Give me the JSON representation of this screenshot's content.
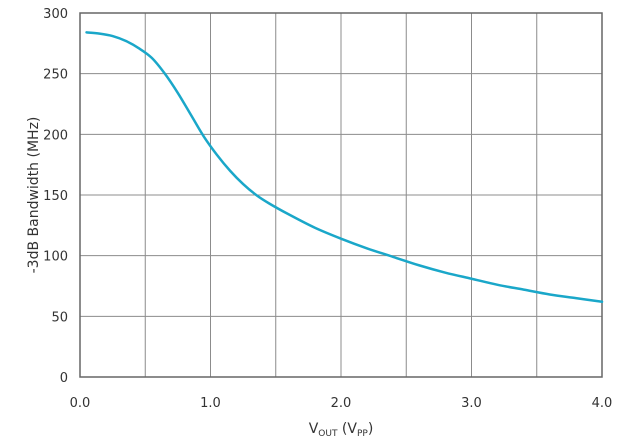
{
  "chart_data": {
    "type": "line",
    "title": "",
    "xlabel": {
      "main": "V",
      "sub": "OUT",
      "paren_open": " (V",
      "paren_sub": "PP",
      "paren_close": ")"
    },
    "ylabel": "-3dB Bandwidth (MHz)",
    "xlim": [
      0,
      4
    ],
    "ylim": [
      0,
      300
    ],
    "xticks": [
      0,
      0.5,
      1,
      1.5,
      2,
      2.5,
      3,
      3.5,
      4
    ],
    "xtick_labels": [
      "0.0",
      "",
      "1.0",
      "",
      "2.0",
      "",
      "3.0",
      "",
      "4.0"
    ],
    "yticks": [
      0,
      50,
      100,
      150,
      200,
      250,
      300
    ],
    "ytick_labels": [
      "0",
      "50",
      "100",
      "150",
      "200",
      "250",
      "300"
    ],
    "grid": true,
    "series": [
      {
        "color": "#1aa7c9",
        "x": [
          0.05,
          0.15,
          0.25,
          0.35,
          0.45,
          0.55,
          0.65,
          0.75,
          0.85,
          0.95,
          1.05,
          1.15,
          1.25,
          1.35,
          1.45,
          1.6,
          1.8,
          2.0,
          2.2,
          2.4,
          2.6,
          2.8,
          3.0,
          3.2,
          3.4,
          3.6,
          3.8,
          4.0
        ],
        "y": [
          284,
          283,
          281,
          277,
          271,
          263,
          250,
          234,
          216,
          198,
          183,
          170,
          159,
          150,
          143,
          134,
          123,
          114,
          106,
          99,
          92,
          86,
          81,
          76,
          72,
          68,
          65,
          62
        ]
      }
    ]
  }
}
